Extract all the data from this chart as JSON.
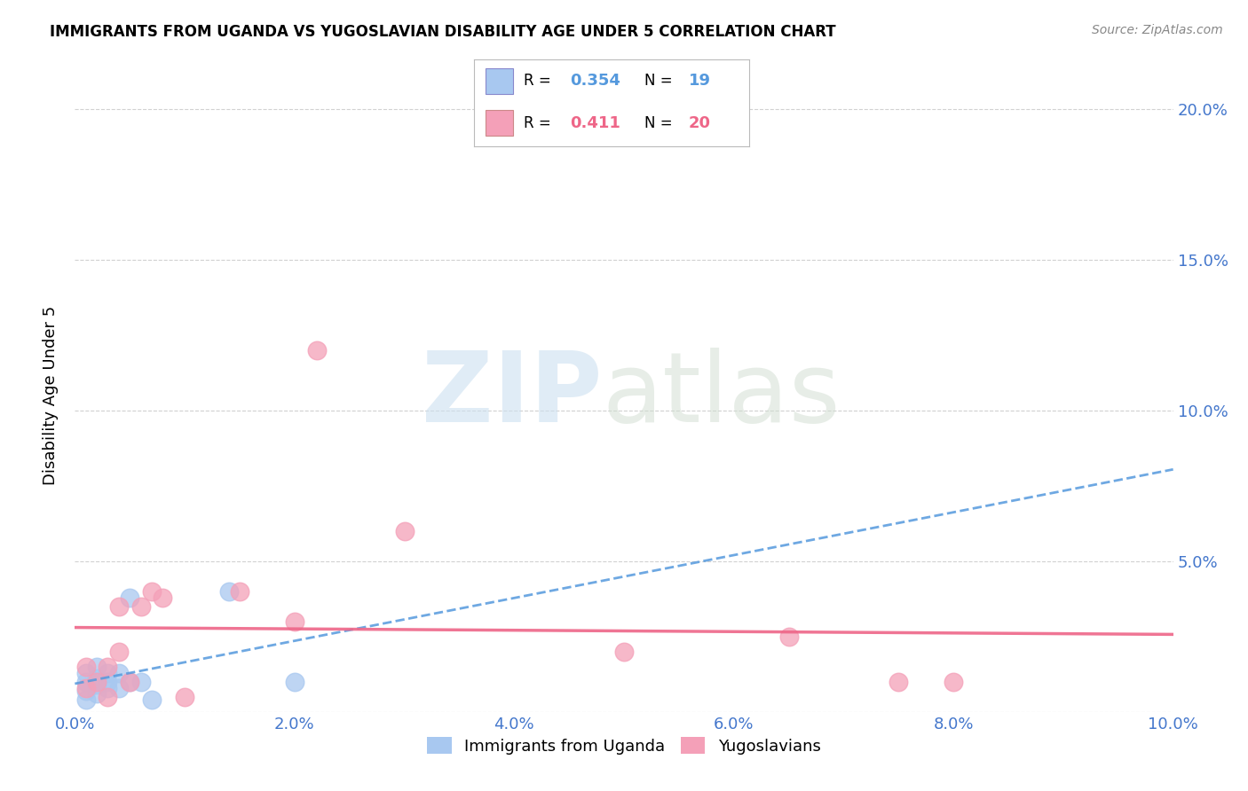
{
  "title": "IMMIGRANTS FROM UGANDA VS YUGOSLAVIAN DISABILITY AGE UNDER 5 CORRELATION CHART",
  "source": "Source: ZipAtlas.com",
  "ylabel": "Disability Age Under 5",
  "xlim": [
    0.0,
    0.1
  ],
  "ylim": [
    0.0,
    0.21
  ],
  "xtick_vals": [
    0.0,
    0.02,
    0.04,
    0.06,
    0.08,
    0.1
  ],
  "ytick_vals": [
    0.0,
    0.05,
    0.1,
    0.15,
    0.2
  ],
  "uganda_R": 0.354,
  "uganda_N": 19,
  "yugoslav_R": 0.411,
  "yugoslav_N": 20,
  "uganda_color": "#a8c8f0",
  "yugoslav_color": "#f4a0b8",
  "uganda_line_color": "#5599dd",
  "yugoslav_line_color": "#ee6688",
  "tick_color": "#4477cc",
  "background_color": "#ffffff",
  "grid_color": "#cccccc",
  "uganda_x": [
    0.001,
    0.001,
    0.001,
    0.001,
    0.002,
    0.002,
    0.002,
    0.002,
    0.003,
    0.003,
    0.003,
    0.004,
    0.004,
    0.005,
    0.005,
    0.006,
    0.007,
    0.014,
    0.02
  ],
  "uganda_y": [
    0.004,
    0.007,
    0.01,
    0.013,
    0.006,
    0.009,
    0.011,
    0.015,
    0.008,
    0.01,
    0.013,
    0.008,
    0.013,
    0.01,
    0.038,
    0.01,
    0.004,
    0.04,
    0.01
  ],
  "yugoslav_x": [
    0.001,
    0.001,
    0.002,
    0.003,
    0.003,
    0.004,
    0.004,
    0.005,
    0.006,
    0.007,
    0.008,
    0.01,
    0.015,
    0.02,
    0.022,
    0.03,
    0.05,
    0.065,
    0.075,
    0.08
  ],
  "yugoslav_y": [
    0.008,
    0.015,
    0.01,
    0.005,
    0.015,
    0.035,
    0.02,
    0.01,
    0.035,
    0.04,
    0.038,
    0.005,
    0.04,
    0.03,
    0.12,
    0.06,
    0.02,
    0.025,
    0.01,
    0.01
  ]
}
